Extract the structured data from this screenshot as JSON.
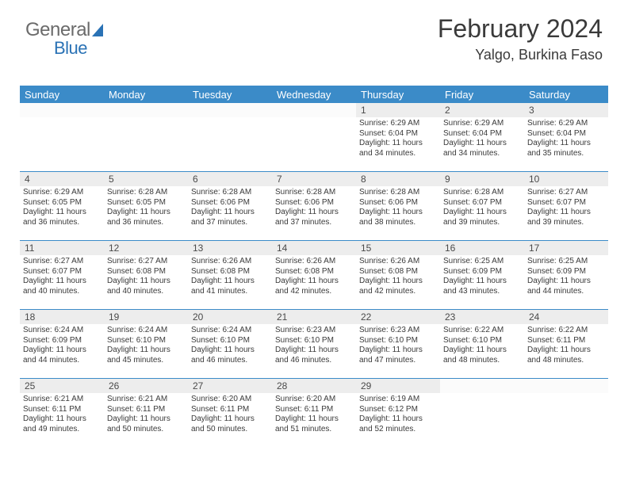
{
  "logo": {
    "part1": "General",
    "part2": "Blue"
  },
  "title": {
    "month": "February 2024",
    "location": "Yalgo, Burkina Faso"
  },
  "headers": [
    "Sunday",
    "Monday",
    "Tuesday",
    "Wednesday",
    "Thursday",
    "Friday",
    "Saturday"
  ],
  "colors": {
    "header_bg": "#3b8bc8",
    "header_text": "#ffffff",
    "cell_border": "#3b8bc8",
    "daynum_bg": "#ededed",
    "logo_gray": "#6b6b6b",
    "logo_blue": "#2a72b5"
  },
  "weeks": [
    [
      {
        "empty": true
      },
      {
        "empty": true
      },
      {
        "empty": true
      },
      {
        "empty": true
      },
      {
        "day": "1",
        "sunrise": "Sunrise: 6:29 AM",
        "sunset": "Sunset: 6:04 PM",
        "daylight": "Daylight: 11 hours and 34 minutes."
      },
      {
        "day": "2",
        "sunrise": "Sunrise: 6:29 AM",
        "sunset": "Sunset: 6:04 PM",
        "daylight": "Daylight: 11 hours and 34 minutes."
      },
      {
        "day": "3",
        "sunrise": "Sunrise: 6:29 AM",
        "sunset": "Sunset: 6:04 PM",
        "daylight": "Daylight: 11 hours and 35 minutes."
      }
    ],
    [
      {
        "day": "4",
        "sunrise": "Sunrise: 6:29 AM",
        "sunset": "Sunset: 6:05 PM",
        "daylight": "Daylight: 11 hours and 36 minutes."
      },
      {
        "day": "5",
        "sunrise": "Sunrise: 6:28 AM",
        "sunset": "Sunset: 6:05 PM",
        "daylight": "Daylight: 11 hours and 36 minutes."
      },
      {
        "day": "6",
        "sunrise": "Sunrise: 6:28 AM",
        "sunset": "Sunset: 6:06 PM",
        "daylight": "Daylight: 11 hours and 37 minutes."
      },
      {
        "day": "7",
        "sunrise": "Sunrise: 6:28 AM",
        "sunset": "Sunset: 6:06 PM",
        "daylight": "Daylight: 11 hours and 37 minutes."
      },
      {
        "day": "8",
        "sunrise": "Sunrise: 6:28 AM",
        "sunset": "Sunset: 6:06 PM",
        "daylight": "Daylight: 11 hours and 38 minutes."
      },
      {
        "day": "9",
        "sunrise": "Sunrise: 6:28 AM",
        "sunset": "Sunset: 6:07 PM",
        "daylight": "Daylight: 11 hours and 39 minutes."
      },
      {
        "day": "10",
        "sunrise": "Sunrise: 6:27 AM",
        "sunset": "Sunset: 6:07 PM",
        "daylight": "Daylight: 11 hours and 39 minutes."
      }
    ],
    [
      {
        "day": "11",
        "sunrise": "Sunrise: 6:27 AM",
        "sunset": "Sunset: 6:07 PM",
        "daylight": "Daylight: 11 hours and 40 minutes."
      },
      {
        "day": "12",
        "sunrise": "Sunrise: 6:27 AM",
        "sunset": "Sunset: 6:08 PM",
        "daylight": "Daylight: 11 hours and 40 minutes."
      },
      {
        "day": "13",
        "sunrise": "Sunrise: 6:26 AM",
        "sunset": "Sunset: 6:08 PM",
        "daylight": "Daylight: 11 hours and 41 minutes."
      },
      {
        "day": "14",
        "sunrise": "Sunrise: 6:26 AM",
        "sunset": "Sunset: 6:08 PM",
        "daylight": "Daylight: 11 hours and 42 minutes."
      },
      {
        "day": "15",
        "sunrise": "Sunrise: 6:26 AM",
        "sunset": "Sunset: 6:08 PM",
        "daylight": "Daylight: 11 hours and 42 minutes."
      },
      {
        "day": "16",
        "sunrise": "Sunrise: 6:25 AM",
        "sunset": "Sunset: 6:09 PM",
        "daylight": "Daylight: 11 hours and 43 minutes."
      },
      {
        "day": "17",
        "sunrise": "Sunrise: 6:25 AM",
        "sunset": "Sunset: 6:09 PM",
        "daylight": "Daylight: 11 hours and 44 minutes."
      }
    ],
    [
      {
        "day": "18",
        "sunrise": "Sunrise: 6:24 AM",
        "sunset": "Sunset: 6:09 PM",
        "daylight": "Daylight: 11 hours and 44 minutes."
      },
      {
        "day": "19",
        "sunrise": "Sunrise: 6:24 AM",
        "sunset": "Sunset: 6:10 PM",
        "daylight": "Daylight: 11 hours and 45 minutes."
      },
      {
        "day": "20",
        "sunrise": "Sunrise: 6:24 AM",
        "sunset": "Sunset: 6:10 PM",
        "daylight": "Daylight: 11 hours and 46 minutes."
      },
      {
        "day": "21",
        "sunrise": "Sunrise: 6:23 AM",
        "sunset": "Sunset: 6:10 PM",
        "daylight": "Daylight: 11 hours and 46 minutes."
      },
      {
        "day": "22",
        "sunrise": "Sunrise: 6:23 AM",
        "sunset": "Sunset: 6:10 PM",
        "daylight": "Daylight: 11 hours and 47 minutes."
      },
      {
        "day": "23",
        "sunrise": "Sunrise: 6:22 AM",
        "sunset": "Sunset: 6:10 PM",
        "daylight": "Daylight: 11 hours and 48 minutes."
      },
      {
        "day": "24",
        "sunrise": "Sunrise: 6:22 AM",
        "sunset": "Sunset: 6:11 PM",
        "daylight": "Daylight: 11 hours and 48 minutes."
      }
    ],
    [
      {
        "day": "25",
        "sunrise": "Sunrise: 6:21 AM",
        "sunset": "Sunset: 6:11 PM",
        "daylight": "Daylight: 11 hours and 49 minutes."
      },
      {
        "day": "26",
        "sunrise": "Sunrise: 6:21 AM",
        "sunset": "Sunset: 6:11 PM",
        "daylight": "Daylight: 11 hours and 50 minutes."
      },
      {
        "day": "27",
        "sunrise": "Sunrise: 6:20 AM",
        "sunset": "Sunset: 6:11 PM",
        "daylight": "Daylight: 11 hours and 50 minutes."
      },
      {
        "day": "28",
        "sunrise": "Sunrise: 6:20 AM",
        "sunset": "Sunset: 6:11 PM",
        "daylight": "Daylight: 11 hours and 51 minutes."
      },
      {
        "day": "29",
        "sunrise": "Sunrise: 6:19 AM",
        "sunset": "Sunset: 6:12 PM",
        "daylight": "Daylight: 11 hours and 52 minutes."
      },
      {
        "empty": true
      },
      {
        "empty": true
      }
    ]
  ]
}
